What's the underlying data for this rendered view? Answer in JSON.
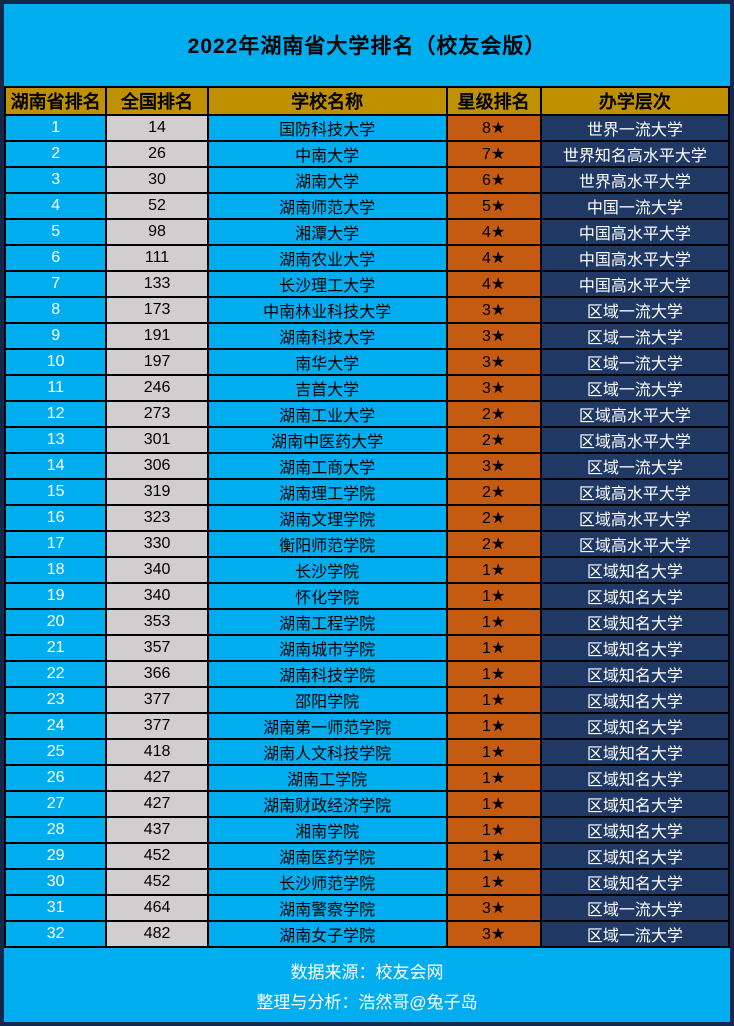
{
  "title": "2022年湖南省大学排名（校友会版）",
  "footer": {
    "line1": "数据来源：校友会网",
    "line2": "整理与分析：浩然哥@兔子岛"
  },
  "colors": {
    "light_blue": "#00AEEF",
    "header_gold": "#BF9000",
    "national_gray": "#D0CECE",
    "star_orange": "#C55A11",
    "level_navy": "#1F3864",
    "grid_border": "#000000",
    "outer_frame": "#12294d"
  },
  "chart_data": {
    "type": "table",
    "title": "2022年湖南省大学排名（校友会版）",
    "headers": [
      "湖南省排名",
      "全国排名",
      "学校名称",
      "星级排名",
      "办学层次"
    ],
    "rows": [
      [
        "1",
        "14",
        "国防科技大学",
        "8★",
        "世界一流大学"
      ],
      [
        "2",
        "26",
        "中南大学",
        "7★",
        "世界知名高水平大学"
      ],
      [
        "3",
        "30",
        "湖南大学",
        "6★",
        "世界高水平大学"
      ],
      [
        "4",
        "52",
        "湖南师范大学",
        "5★",
        "中国一流大学"
      ],
      [
        "5",
        "98",
        "湘潭大学",
        "4★",
        "中国高水平大学"
      ],
      [
        "6",
        "111",
        "湖南农业大学",
        "4★",
        "中国高水平大学"
      ],
      [
        "7",
        "133",
        "长沙理工大学",
        "4★",
        "中国高水平大学"
      ],
      [
        "8",
        "173",
        "中南林业科技大学",
        "3★",
        "区域一流大学"
      ],
      [
        "9",
        "191",
        "湖南科技大学",
        "3★",
        "区域一流大学"
      ],
      [
        "10",
        "197",
        "南华大学",
        "3★",
        "区域一流大学"
      ],
      [
        "11",
        "246",
        "吉首大学",
        "3★",
        "区域一流大学"
      ],
      [
        "12",
        "273",
        "湖南工业大学",
        "2★",
        "区域高水平大学"
      ],
      [
        "13",
        "301",
        "湖南中医药大学",
        "2★",
        "区域高水平大学"
      ],
      [
        "14",
        "306",
        "湖南工商大学",
        "3★",
        "区域一流大学"
      ],
      [
        "15",
        "319",
        "湖南理工学院",
        "2★",
        "区域高水平大学"
      ],
      [
        "16",
        "323",
        "湖南文理学院",
        "2★",
        "区域高水平大学"
      ],
      [
        "17",
        "330",
        "衡阳师范学院",
        "2★",
        "区域高水平大学"
      ],
      [
        "18",
        "340",
        "长沙学院",
        "1★",
        "区域知名大学"
      ],
      [
        "19",
        "340",
        "怀化学院",
        "1★",
        "区域知名大学"
      ],
      [
        "20",
        "353",
        "湖南工程学院",
        "1★",
        "区域知名大学"
      ],
      [
        "21",
        "357",
        "湖南城市学院",
        "1★",
        "区域知名大学"
      ],
      [
        "22",
        "366",
        "湖南科技学院",
        "1★",
        "区域知名大学"
      ],
      [
        "23",
        "377",
        "邵阳学院",
        "1★",
        "区域知名大学"
      ],
      [
        "24",
        "377",
        "湖南第一师范学院",
        "1★",
        "区域知名大学"
      ],
      [
        "25",
        "418",
        "湖南人文科技学院",
        "1★",
        "区域知名大学"
      ],
      [
        "26",
        "427",
        "湖南工学院",
        "1★",
        "区域知名大学"
      ],
      [
        "27",
        "427",
        "湖南财政经济学院",
        "1★",
        "区域知名大学"
      ],
      [
        "28",
        "437",
        "湘南学院",
        "1★",
        "区域知名大学"
      ],
      [
        "29",
        "452",
        "湖南医药学院",
        "1★",
        "区域知名大学"
      ],
      [
        "30",
        "452",
        "长沙师范学院",
        "1★",
        "区域知名大学"
      ],
      [
        "31",
        "464",
        "湖南警察学院",
        "3★",
        "区域一流大学"
      ],
      [
        "32",
        "482",
        "湖南女子学院",
        "3★",
        "区域一流大学"
      ]
    ]
  }
}
